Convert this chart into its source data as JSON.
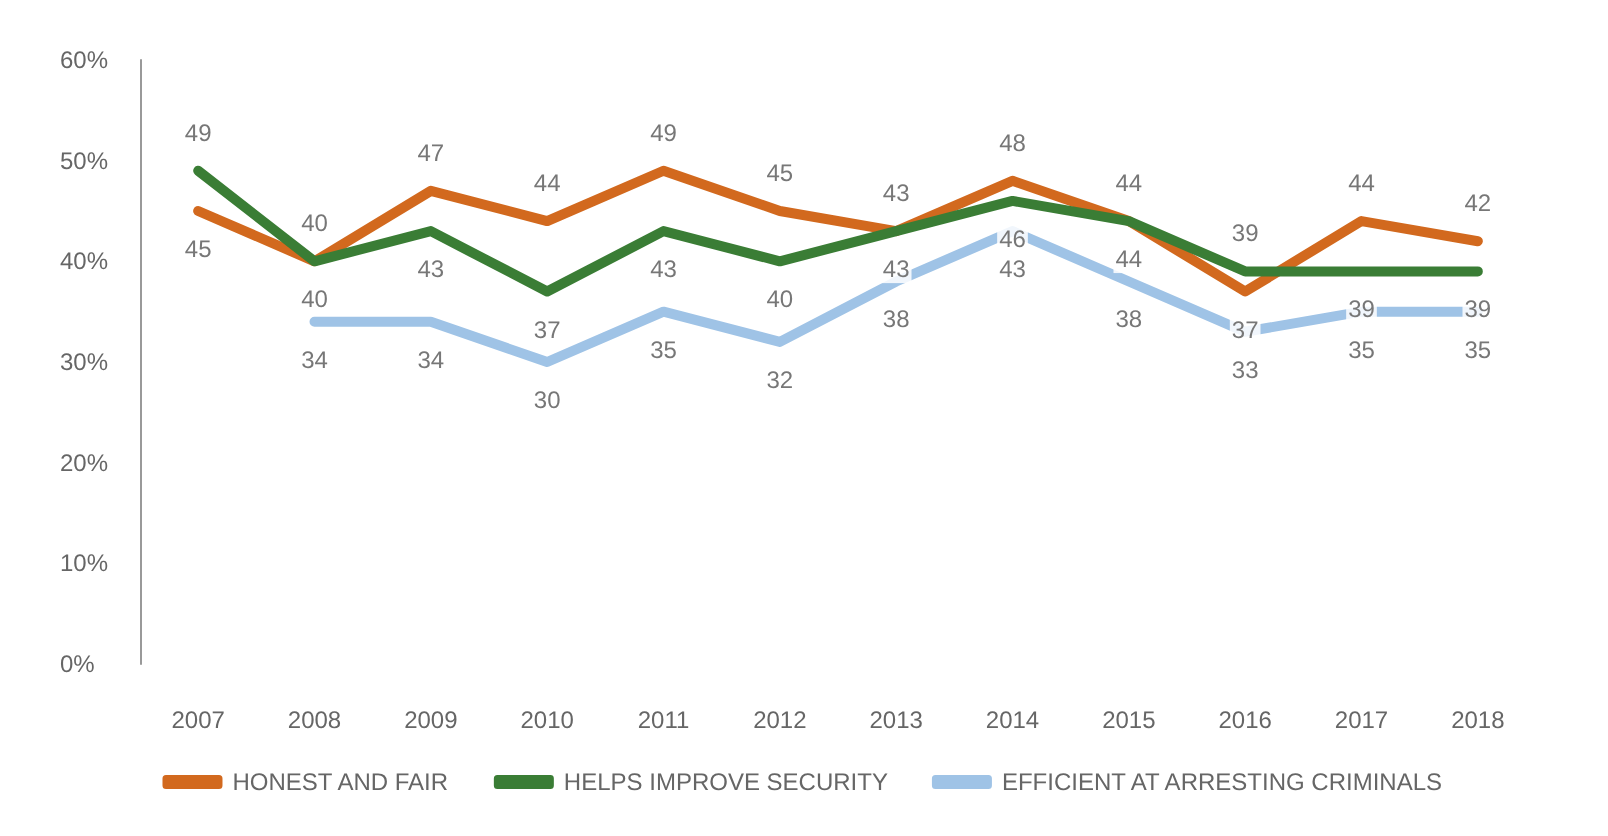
{
  "chart_data": {
    "type": "line",
    "categories": [
      "2007",
      "2008",
      "2009",
      "2010",
      "2011",
      "2012",
      "2013",
      "2014",
      "2015",
      "2016",
      "2017",
      "2018"
    ],
    "series": [
      {
        "name": "HONEST AND FAIR",
        "color": "#d2691e",
        "values": [
          45,
          40,
          47,
          44,
          49,
          45,
          43,
          48,
          44,
          37,
          44,
          42
        ]
      },
      {
        "name": "HELPS IMPROVE SECURITY",
        "color": "#3a7d35",
        "values": [
          49,
          40,
          43,
          37,
          43,
          40,
          43,
          46,
          44,
          39,
          39,
          39
        ]
      },
      {
        "name": "EFFICIENT AT ARRESTING CRIMINALS",
        "color": "#9fc3e6",
        "values": [
          null,
          34,
          34,
          30,
          35,
          32,
          38,
          43,
          38,
          33,
          35,
          35
        ]
      }
    ],
    "ylim": [
      0,
      60
    ],
    "yticks": [
      {
        "value": 0,
        "label": "0%"
      },
      {
        "value": 10,
        "label": "10%"
      },
      {
        "value": 20,
        "label": "20%"
      },
      {
        "value": 30,
        "label": "30%"
      },
      {
        "value": 40,
        "label": "40%"
      },
      {
        "value": 50,
        "label": "50%"
      },
      {
        "value": 60,
        "label": "60%"
      }
    ],
    "grid": false,
    "legend": "bottom",
    "marker": "none",
    "line_style": "solid",
    "data_labels": true
  }
}
